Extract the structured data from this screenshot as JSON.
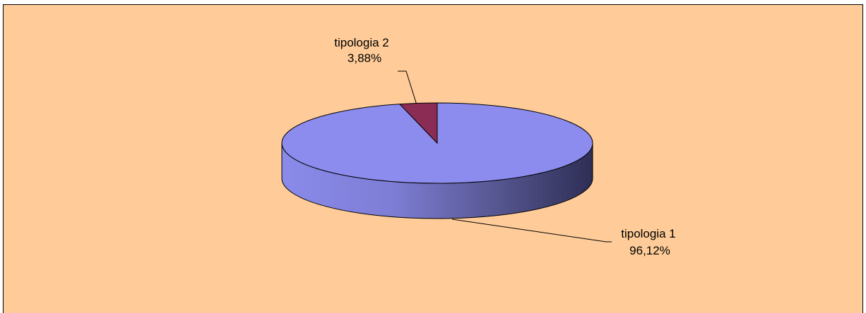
{
  "chart_data": {
    "type": "pie",
    "style": "3d",
    "title": "",
    "slices": [
      {
        "label": "tipologia 1",
        "value": 96.12,
        "value_label": "96,12%",
        "color": "#8C8CEE"
      },
      {
        "label": "tipologia 2",
        "value": 3.88,
        "value_label": "3,88%",
        "color": "#8B2C55"
      }
    ],
    "legend": "none",
    "background": "#FFCC99"
  }
}
